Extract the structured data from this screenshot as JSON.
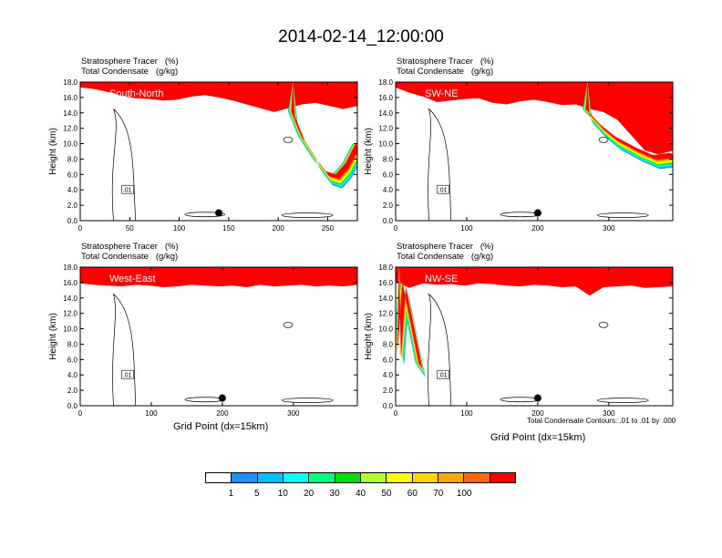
{
  "title": "2014-02-14_12:00:00",
  "contour_note": "Total Condensate Contours: .01 to .01 by .000",
  "colors": {
    "levels": [
      "#ffffff",
      "#1e90ff",
      "#00bfff",
      "#00ffff",
      "#00ff7f",
      "#00e000",
      "#adff2f",
      "#ffff00",
      "#ffd700",
      "#ffa500",
      "#ff6600",
      "#ff0000"
    ],
    "contour": "#000000"
  },
  "colorbar": {
    "labels": [
      "1",
      "5",
      "10",
      "20",
      "30",
      "40",
      "50",
      "60",
      "70",
      "100"
    ]
  },
  "chart_data": [
    {
      "type": "heatmap",
      "title_lines": [
        "Stratosphere Tracer   (%)",
        "Total Condensate   (g/kg)"
      ],
      "panel_label": "South-North",
      "ylabel": "Height (km)",
      "xlabel": "",
      "ylim": [
        0,
        18
      ],
      "xlim": [
        0,
        280
      ],
      "yticks": [
        "0.0",
        "2.0",
        "4.0",
        "6.0",
        "8.0",
        "10.0",
        "12.0",
        "14.0",
        "16.0",
        "18.0"
      ],
      "xticks": [
        0,
        50,
        100,
        150,
        200,
        250
      ],
      "tracer_top_km": [
        17.2,
        17.0,
        16.6,
        16.1,
        15.8,
        15.7,
        15.5,
        15.6,
        16.0,
        16.2,
        15.9,
        15.5,
        15.0,
        14.5,
        14.0,
        14.5,
        15.0,
        15.2,
        14.8,
        14.4,
        14.8
      ],
      "intrusion": {
        "x": [
          215,
          225,
          240,
          250,
          260,
          270,
          280
        ],
        "h": [
          14.2,
          11.0,
          8.0,
          6.4,
          6.0,
          7.5,
          10.0
        ]
      },
      "contour_label": ".01",
      "marker": {
        "x": 140,
        "y": 1.0
      }
    },
    {
      "type": "heatmap",
      "title_lines": [
        "Stratosphere Tracer   (%)",
        "Total Condensate   (g/kg)"
      ],
      "panel_label": "SW-NE",
      "ylabel": "Height (km)",
      "xlabel": "",
      "ylim": [
        0,
        18
      ],
      "xlim": [
        0,
        390
      ],
      "yticks": [
        "0.0",
        "2.0",
        "4.0",
        "6.0",
        "8.0",
        "10.0",
        "12.0",
        "14.0",
        "16.0",
        "18.0"
      ],
      "xticks": [
        0,
        100,
        200,
        300
      ],
      "tracer_top_km": [
        17.2,
        16.5,
        16.0,
        15.3,
        15.5,
        15.7,
        15.8,
        15.2,
        15.0,
        15.4,
        15.6,
        15.3,
        14.9,
        15.0,
        14.4,
        14.0,
        13.0,
        11.0,
        9.0,
        8.5,
        9.0
      ],
      "intrusion": {
        "x": [
          270,
          290,
          310,
          340,
          365,
          390
        ],
        "h": [
          14.5,
          12.5,
          11.0,
          9.5,
          8.5,
          8.8
        ]
      },
      "contour_label": ".01",
      "marker": {
        "x": 200,
        "y": 1.0
      }
    },
    {
      "type": "heatmap",
      "title_lines": [
        "Stratosphere Tracer   (%)",
        "Total Condensate   (g/kg)"
      ],
      "panel_label": "West-East",
      "ylabel": "Height (km)",
      "xlabel": "Grid Point (dx=15km)",
      "ylim": [
        0,
        18
      ],
      "xlim": [
        0,
        390
      ],
      "yticks": [
        "0.0",
        "2.0",
        "4.0",
        "6.0",
        "8.0",
        "10.0",
        "12.0",
        "14.0",
        "16.0",
        "18.0"
      ],
      "xticks": [
        0,
        100,
        200,
        300
      ],
      "tracer_top_km": [
        15.8,
        15.6,
        15.5,
        15.4,
        15.6,
        15.5,
        15.3,
        15.4,
        15.6,
        15.5,
        15.4,
        15.5,
        15.3,
        15.6,
        15.4,
        15.5,
        15.6,
        15.4,
        15.5,
        15.4,
        15.6
      ],
      "intrusion": null,
      "contour_label": ".01",
      "marker": {
        "x": 200,
        "y": 1.0
      }
    },
    {
      "type": "heatmap",
      "title_lines": [
        "Stratosphere Tracer   (%)",
        "Total Condensate   (g/kg)"
      ],
      "panel_label": "NW-SE",
      "ylabel": "Height (km)",
      "xlabel": "Grid Point (dx=15km)",
      "ylim": [
        0,
        18
      ],
      "xlim": [
        0,
        390
      ],
      "yticks": [
        "0.0",
        "2.0",
        "4.0",
        "6.0",
        "8.0",
        "10.0",
        "12.0",
        "14.0",
        "16.0",
        "18.0"
      ],
      "xticks": [
        0,
        100,
        200,
        300
      ],
      "tracer_top_km": [
        16.0,
        15.2,
        15.8,
        15.6,
        15.7,
        15.5,
        15.8,
        15.7,
        15.5,
        15.4,
        15.6,
        15.5,
        15.3,
        15.4,
        14.2,
        15.3,
        15.4,
        15.5,
        15.2,
        15.3,
        15.4
      ],
      "intrusion": {
        "x": [
          5,
          12,
          35
        ],
        "h": [
          7.0,
          16.0,
          5.5
        ]
      },
      "contour_label": ".01",
      "marker": {
        "x": 200,
        "y": 1.0
      }
    }
  ]
}
